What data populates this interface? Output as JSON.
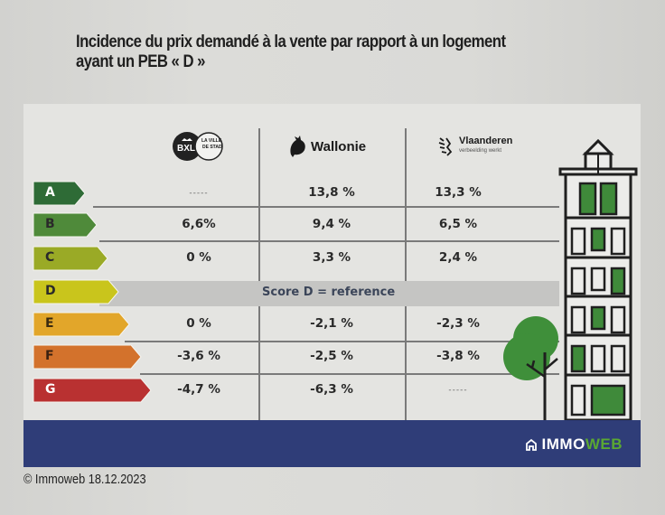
{
  "title": {
    "line1": "Incidence du prix demandé à la vente par rapport à un logement",
    "line2": "ayant un PEB « D »"
  },
  "columns": [
    {
      "name": "Bruxelles",
      "logo_text": "BXL",
      "logo_subtext_1": "LA VILLE",
      "logo_subtext_2": "DE STAD",
      "icon": "bxl-logo-icon"
    },
    {
      "name": "Wallonie",
      "logo_text": "Wallonie",
      "icon": "rooster-icon"
    },
    {
      "name": "Vlaanderen",
      "logo_text": "Vlaanderen",
      "logo_subtext_1": "verbeelding werkt",
      "icon": "lion-icon"
    }
  ],
  "reference_label": "Score D = reference",
  "brand": {
    "part1": "IMMO",
    "part2": "WEB",
    "icon": "home-icon"
  },
  "credit": "© Immoweb 18.12.2023",
  "colors": {
    "A": "#2e6b36",
    "B": "#4f8a3a",
    "C": "#9aaa26",
    "D": "#c9c51c",
    "E": "#e2a62a",
    "F": "#d3722c",
    "G": "#b93131",
    "footer": "#2f3d78",
    "brand_green": "#5aa832",
    "tree": "#3f8f3a"
  },
  "chart_data": {
    "type": "table",
    "title": "Incidence du prix demandé à la vente par rapport à un logement ayant un PEB « D »",
    "columns": [
      "Bruxelles",
      "Wallonie",
      "Vlaanderen"
    ],
    "categories": [
      "A",
      "B",
      "C",
      "D",
      "E",
      "F",
      "G"
    ],
    "rows": [
      {
        "label": "A",
        "values": [
          "-----",
          "13,8 %",
          "13,3 %"
        ]
      },
      {
        "label": "B",
        "values": [
          "6,6%",
          "9,4 %",
          "6,5 %"
        ]
      },
      {
        "label": "C",
        "values": [
          "0 %",
          "3,3 %",
          "2,4 %"
        ]
      },
      {
        "label": "D",
        "values": [
          "Score D = reference",
          "",
          ""
        ]
      },
      {
        "label": "E",
        "values": [
          "0 %",
          "-2,1 %",
          "-2,3 %"
        ]
      },
      {
        "label": "F",
        "values": [
          "-3,6 %",
          "-2,5 %",
          "-3,8 %"
        ]
      },
      {
        "label": "G",
        "values": [
          "-4,7 %",
          "-6,3 %",
          "-----"
        ]
      }
    ],
    "series": [
      {
        "name": "Bruxelles",
        "values": [
          null,
          6.6,
          0,
          0,
          0,
          -3.6,
          -4.7
        ]
      },
      {
        "name": "Wallonie",
        "values": [
          13.8,
          9.4,
          3.3,
          0,
          -2.1,
          -2.5,
          -6.3
        ]
      },
      {
        "name": "Vlaanderen",
        "values": [
          13.3,
          6.5,
          2.4,
          0,
          -2.3,
          -3.8,
          null
        ]
      }
    ],
    "unit": "%"
  }
}
